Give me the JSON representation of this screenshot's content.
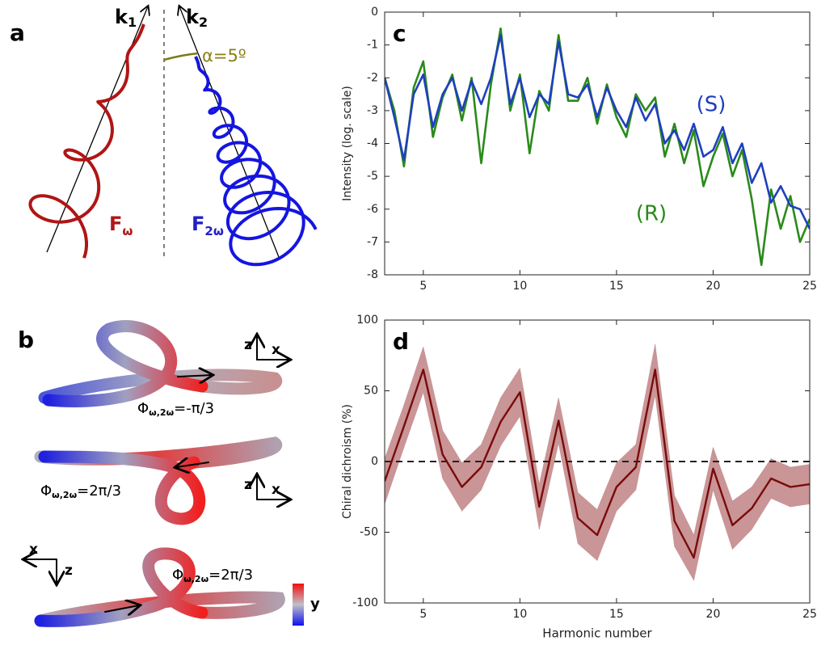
{
  "panels": {
    "a": {
      "label": "a",
      "k1": {
        "text": "k",
        "sub": "1"
      },
      "k2": {
        "text": "k",
        "sub": "2"
      },
      "alpha": "α=5º",
      "f1": {
        "text": "F",
        "sub": "ω"
      },
      "f2": {
        "text": "F",
        "sub": "2ω"
      }
    },
    "b": {
      "label": "b",
      "axes": [
        {
          "up": "z",
          "side": "x"
        },
        {
          "up": "z",
          "side": "x"
        },
        {
          "up": "z",
          "side": "x"
        }
      ],
      "phases": [
        {
          "text": "Φ",
          "sub": "ω,2ω",
          "rest": "=-π/3"
        },
        {
          "text": "Φ",
          "sub": "ω,2ω",
          "rest": "=2π/3"
        },
        {
          "text": "Φ",
          "sub": "ω,2ω",
          "rest": "=2π/3"
        }
      ],
      "colorbar": "y"
    }
  },
  "chart_data": [
    {
      "type": "line",
      "panel_label": "c",
      "ylabel": "Intensity (log. scale)",
      "x": [
        3,
        3.5,
        4,
        4.5,
        5,
        5.5,
        6,
        6.5,
        7,
        7.5,
        8,
        8.5,
        9,
        9.5,
        10,
        10.5,
        11,
        11.5,
        12,
        12.5,
        13,
        13.5,
        14,
        14.5,
        15,
        15.5,
        16,
        16.5,
        17,
        17.5,
        18,
        18.5,
        19,
        19.5,
        20,
        20.5,
        21,
        21.5,
        22,
        22.5,
        23,
        23.5,
        24,
        24.5,
        25
      ],
      "series": [
        {
          "name": "(S)",
          "color": "#1f3fbf",
          "values": [
            -2.0,
            -3.2,
            -4.5,
            -2.5,
            -1.9,
            -3.5,
            -2.5,
            -2.0,
            -3.0,
            -2.1,
            -2.8,
            -2.0,
            -0.7,
            -2.8,
            -2.0,
            -3.2,
            -2.5,
            -2.8,
            -0.9,
            -2.5,
            -2.6,
            -2.2,
            -3.2,
            -2.3,
            -3.0,
            -3.5,
            -2.6,
            -3.3,
            -2.8,
            -4.0,
            -3.6,
            -4.2,
            -3.4,
            -4.4,
            -4.2,
            -3.5,
            -4.6,
            -4.0,
            -5.2,
            -4.6,
            -5.8,
            -5.3,
            -5.9,
            -6.0,
            -6.6
          ]
        },
        {
          "name": "(R)",
          "color": "#2a8a1a",
          "values": [
            -2.0,
            -3.0,
            -4.7,
            -2.3,
            -1.5,
            -3.8,
            -2.6,
            -1.9,
            -3.3,
            -2.0,
            -4.6,
            -2.2,
            -0.5,
            -3.0,
            -1.9,
            -4.3,
            -2.4,
            -3.0,
            -0.7,
            -2.7,
            -2.7,
            -2.0,
            -3.4,
            -2.2,
            -3.2,
            -3.8,
            -2.5,
            -3.0,
            -2.6,
            -4.4,
            -3.4,
            -4.6,
            -3.6,
            -5.3,
            -4.4,
            -3.7,
            -5.0,
            -4.2,
            -5.7,
            -7.7,
            -5.4,
            -6.6,
            -5.6,
            -7.0,
            -6.3
          ]
        }
      ],
      "xlim": [
        3,
        25
      ],
      "xticks": [
        5,
        10,
        15,
        20,
        25
      ],
      "ylim": [
        -8,
        0
      ],
      "yticks": [
        -8,
        -7,
        -6,
        -5,
        -4,
        -3,
        -2,
        -1,
        0
      ]
    },
    {
      "type": "band",
      "panel_label": "d",
      "xlabel": "Harmonic number",
      "ylabel": "Chiral dichroism (%)",
      "x": [
        3,
        4,
        5,
        6,
        7,
        8,
        9,
        10,
        11,
        12,
        13,
        14,
        15,
        16,
        17,
        18,
        19,
        20,
        21,
        22,
        23,
        24,
        25
      ],
      "values": [
        -14,
        25,
        65,
        5,
        -18,
        -4,
        28,
        49,
        -32,
        29,
        -40,
        -52,
        -18,
        -4,
        65,
        -42,
        -68,
        -5,
        -45,
        -33,
        -12,
        -18,
        -16
      ],
      "errors": [
        16,
        15,
        16,
        17,
        17,
        16,
        17,
        17,
        16,
        16,
        18,
        18,
        17,
        16,
        18,
        18,
        16,
        15,
        17,
        15,
        14,
        14,
        14
      ],
      "color": "#7a0a0a",
      "band_color": "#c99596",
      "hline": 0,
      "xlim": [
        3,
        25
      ],
      "xticks": [
        5,
        10,
        15,
        20,
        25
      ],
      "ylim": [
        -100,
        100
      ],
      "yticks": [
        -100,
        -50,
        0,
        50,
        100
      ]
    }
  ]
}
